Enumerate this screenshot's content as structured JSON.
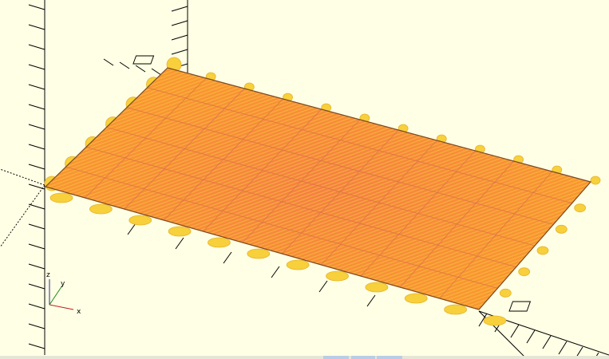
{
  "viewport": {
    "background": "#ffffe5",
    "ruler_color": "#000000",
    "grid": {
      "rows": 6,
      "cols": 11
    },
    "colors": {
      "plate_base": "#fa9632",
      "plate_grid": "#d9704a",
      "plate_hatch": "#f5cf3d",
      "plate_hot": "#f26a50",
      "tab_fill": "#f7d03b",
      "tab_stroke": "#e6b32e"
    }
  },
  "axis_indicator": {
    "x_label": "x",
    "y_label": "y",
    "z_label": "z"
  },
  "bottom_strip": {
    "tabs": 3
  }
}
